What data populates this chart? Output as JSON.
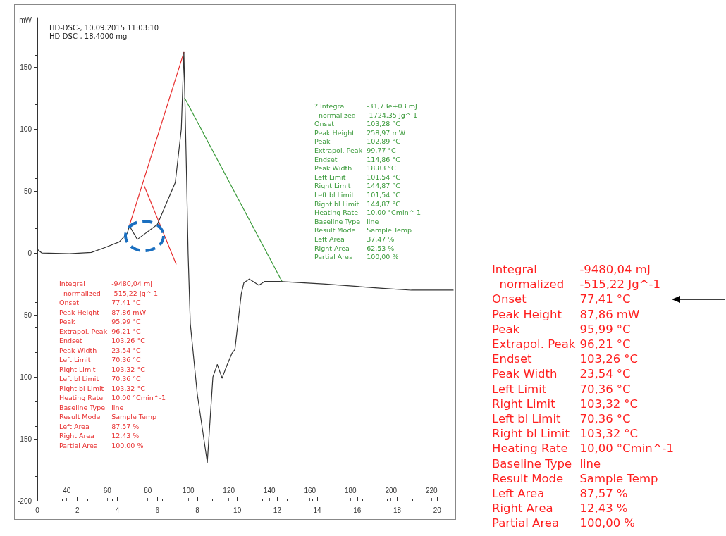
{
  "chart_data": {
    "type": "line",
    "ylabel": "mW",
    "xlim": [
      0,
      20.8
    ],
    "xticks": [
      0,
      2,
      4,
      6,
      8,
      10,
      12,
      14,
      16,
      18,
      20
    ],
    "x2lim": [
      25.5,
      230.7
    ],
    "x2ticks": [
      40,
      60,
      80,
      100,
      120,
      140,
      160,
      180,
      200,
      220
    ],
    "ylim": [
      -200,
      190
    ],
    "yticks": [
      -200,
      -150,
      -100,
      -50,
      0,
      50,
      100,
      150
    ],
    "grid": false,
    "marker": "none",
    "line_style": "solid",
    "series": [
      {
        "color": "#333333",
        "x": [
          0,
          0.23,
          1.6,
          2.7,
          3.4,
          4.1,
          4.5,
          4.6,
          5.0,
          6.0,
          6.9,
          7.2,
          7.33,
          7.37,
          7.47,
          7.54,
          7.65,
          8.0,
          8.5,
          8.78,
          9.0,
          9.24,
          9.45,
          9.73,
          9.88,
          10.2,
          10.33,
          10.6,
          11.08,
          11.36,
          12.1,
          14.3,
          17.26,
          18.7,
          20.8
        ],
        "values": [
          3,
          0,
          -0.5,
          0.5,
          4.5,
          9,
          16,
          22,
          11,
          23,
          57,
          100,
          162,
          131,
          57,
          0,
          -57,
          -114,
          -169,
          -100,
          -90,
          -101,
          -92,
          -81,
          -78,
          -33,
          -24,
          -21,
          -26,
          -23,
          -23,
          -25,
          -28.5,
          -30,
          -30
        ]
      },
      {
        "color": "#e83030",
        "x": [
          4.6,
          7.33
        ],
        "values": [
          22,
          162
        ]
      },
      {
        "color": "#e83030",
        "x": [
          5.35,
          6.94
        ],
        "values": [
          54,
          -9
        ]
      },
      {
        "color": "#3a9a3a",
        "x": [
          7.37,
          12.24
        ],
        "values": [
          125,
          -23
        ]
      }
    ],
    "ref_lines": [
      {
        "axis": "x",
        "value": 7.72,
        "color": "#3a9a3a"
      },
      {
        "axis": "x",
        "value": 8.57,
        "color": "#3a9a3a"
      }
    ],
    "annotations": [
      "HD-DSC-, 10.09.2015 11:03:10\nHD-DSC-, 18,4000 mg",
      "? Integral\t-31,73e+03 mJ\n  normalized\t-1724,35 Jg^-1\nOnset\t103,28 °C\nPeak Height\t258,97 mW\nPeak\t102,89 °C\nExtrapol. Peak\t99,77 °C\nEndset\t114,86 °C\nPeak Width\t18,83 °C\nLeft Limit\t101,54 °C\nRight Limit\t144,87 °C\nLeft bl Limit\t101,54 °C\nRight bl Limit\t144,87 °C\nHeating Rate\t10,00 °Cmin^-1\nBaseline Type\tline\nResult Mode\tSample Temp\nLeft Area\t37,47 %\nRight Area\t62,53 %\nPartial Area\t100,00 %",
      "Integral\t-9480,04 mJ\n  normalized\t-515,22 Jg^-1\nOnset\t77,41 °C\nPeak Height\t87,86 mW\nPeak\t95,99 °C\nExtrapol. Peak\t96,21 °C\nEndset\t103,26 °C\nPeak Width\t23,54 °C\nLeft Limit\t70,36 °C\nRight Limit\t103,32 °C\nLeft bl Limit\t70,36 °C\nRight bl Limit\t103,32 °C\nHeating Rate\t10,00 °Cmin^-1\nBaseline Type\tline\nResult Mode\tSample Temp\nLeft Area\t87,57 %\nRight Area\t12,43 %\nPartial Area\t100,00 %",
      "Integral\t-9480,04 mJ\n  normalized\t-515,22 Jg^-1\nOnset\t77,41 °C\nPeak Height\t87,86 mW\nPeak\t95,99 °C\nExtrapol. Peak\t96,21 °C\nEndset\t103,26 °C\nPeak Width\t23,54 °C\nLeft Limit\t70,36 °C\nRight Limit\t103,32 °C\nLeft bl Limit\t70,36 °C\nRight bl Limit\t103,32 °C\nHeating Rate\t10,00 °Cmin^-1\nBaseline Type\tline\nResult Mode\tSample Temp\nLeft Area\t87,57 %\nRight Area\t12,43 %\nPartial Area\t100,00 %"
    ]
  }
}
